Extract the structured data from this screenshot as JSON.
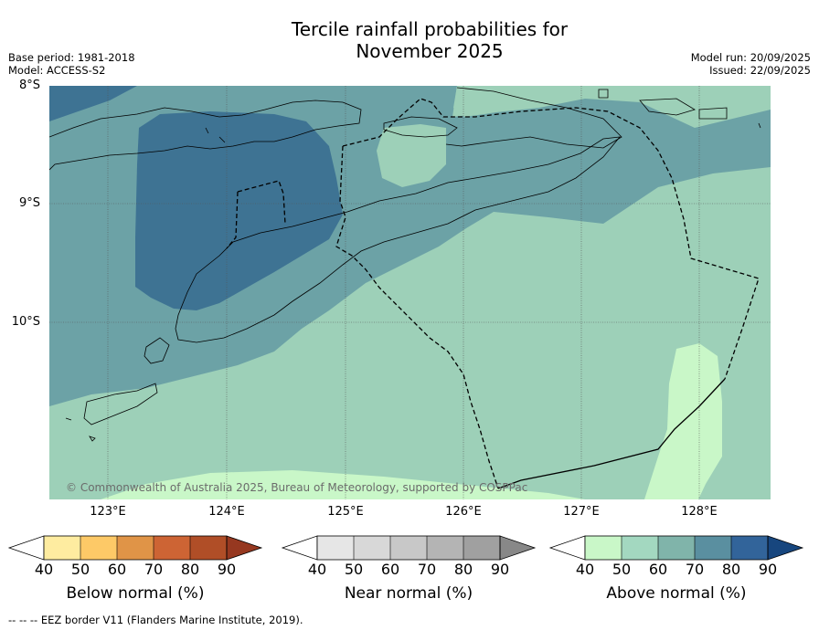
{
  "header": {
    "title_line1": "Tercile rainfall probabilities for",
    "title_line2": "November 2025",
    "base_period": "Base period: 1981-2018",
    "model": "Model: ACCESS-S2",
    "model_run": "Model run: 20/09/2025",
    "issued": "Issued: 22/09/2025"
  },
  "map": {
    "lat_labels": [
      "8°S",
      "9°S",
      "10°S"
    ],
    "lon_labels": [
      "123°E",
      "124°E",
      "125°E",
      "126°E",
      "127°E",
      "128°E"
    ],
    "attribution": "© Commonwealth of Australia 2025, Bureau of Meteorology, supported by COSPPac",
    "colors": {
      "ocean_above_50": "#9dd0b8",
      "above_40": "#c9f7c8",
      "above_60": "#6ca2a6",
      "above_70": "#3e7393"
    }
  },
  "colorbars": [
    {
      "label": "Below normal (%)",
      "ticks": [
        "40",
        "50",
        "60",
        "70",
        "80",
        "90"
      ],
      "colors": [
        "#ffffff",
        "#feeca0",
        "#fdc967",
        "#e09447",
        "#cd6434",
        "#b04e27",
        "#963820"
      ]
    },
    {
      "label": "Near normal (%)",
      "ticks": [
        "40",
        "50",
        "60",
        "70",
        "80",
        "90"
      ],
      "colors": [
        "#ffffff",
        "#e6e6e6",
        "#d8d8d8",
        "#c8c8c8",
        "#b4b4b4",
        "#a0a0a0",
        "#888888"
      ]
    },
    {
      "label": "Above normal (%)",
      "ticks": [
        "40",
        "50",
        "60",
        "70",
        "80",
        "90"
      ],
      "colors": [
        "#ffffff",
        "#c9f7c8",
        "#a3d8c0",
        "#80b4aa",
        "#5a8fa0",
        "#32649a",
        "#17467e"
      ]
    }
  ],
  "footnote": "--  --  -- EEZ border V11 (Flanders Marine Institute, 2019)."
}
